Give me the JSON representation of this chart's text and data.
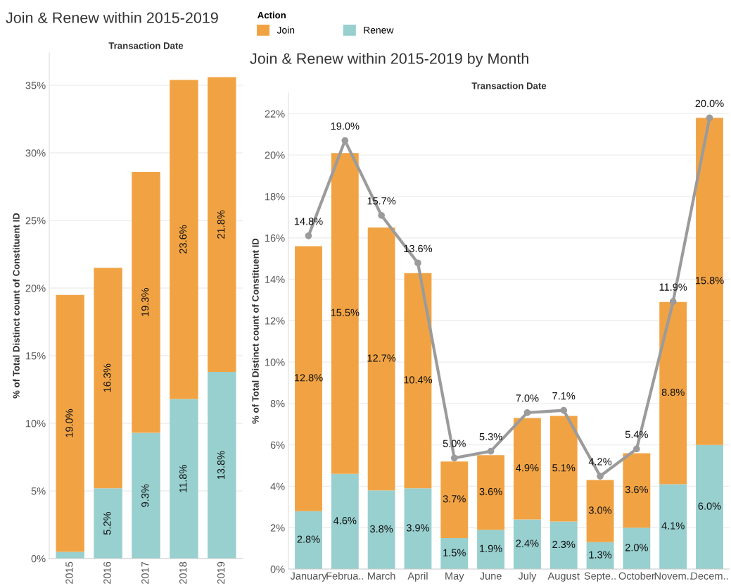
{
  "chart_data": [
    {
      "type": "bar",
      "title": "Join & Renew within 2015-2019",
      "xlabel": "Transaction Date",
      "ylabel": "% of Total Distinct count of Constituent ID",
      "stacked": true,
      "grid": "y",
      "legend": "top right",
      "legend_title": "Action",
      "categories": [
        "2015",
        "2016",
        "2017",
        "2018",
        "2019"
      ],
      "ylim": [
        0,
        37.4
      ],
      "yticks": [
        {
          "value": 0,
          "label": "0%"
        },
        {
          "value": 5,
          "label": "5%"
        },
        {
          "value": 10,
          "label": "10%"
        },
        {
          "value": 15,
          "label": "15%"
        },
        {
          "value": 20,
          "label": "20%"
        },
        {
          "value": 25,
          "label": "25%"
        },
        {
          "value": 30,
          "label": "30%"
        },
        {
          "value": 35,
          "label": "35%"
        }
      ],
      "series": [
        {
          "name": "Renew",
          "color": "#98cfcf",
          "values": [
            0.5,
            5.2,
            9.3,
            11.8,
            13.8
          ],
          "value_labels": [
            null,
            "5.2%",
            "9.3%",
            "11.8%",
            "13.8%"
          ]
        },
        {
          "name": "Join",
          "color": "#f1a344",
          "values": [
            19.0,
            16.3,
            19.3,
            23.6,
            21.8
          ],
          "value_labels": [
            "19.0%",
            "16.3%",
            "19.3%",
            "23.6%",
            "21.8%"
          ]
        }
      ]
    },
    {
      "type": "bar",
      "title": "Join & Renew within 2015-2019 by Month",
      "xlabel": "Transaction Date",
      "ylabel": "% of Total Distinct count of Constituent ID",
      "stacked": true,
      "grid": "y",
      "categories": [
        "January",
        "Februa..",
        "March",
        "April",
        "May",
        "June",
        "July",
        "August",
        "Septe..",
        "October",
        "Novem..",
        "Decem.."
      ],
      "ylim": [
        0,
        23
      ],
      "yticks": [
        {
          "value": 0,
          "label": "0%"
        },
        {
          "value": 2,
          "label": "2%"
        },
        {
          "value": 4,
          "label": "4%"
        },
        {
          "value": 6,
          "label": "6%"
        },
        {
          "value": 8,
          "label": "8%"
        },
        {
          "value": 10,
          "label": "10%"
        },
        {
          "value": 12,
          "label": "12%"
        },
        {
          "value": 14,
          "label": "14%"
        },
        {
          "value": 16,
          "label": "16%"
        },
        {
          "value": 18,
          "label": "18%"
        },
        {
          "value": 20,
          "label": "20%"
        },
        {
          "value": 22,
          "label": "22%"
        }
      ],
      "y2lim": [
        0.1,
        21.1
      ],
      "series": [
        {
          "color": "#98cfcf",
          "values": [
            2.8,
            4.6,
            3.8,
            3.9,
            1.5,
            1.9,
            2.4,
            2.3,
            1.3,
            2.0,
            4.1,
            6.0
          ],
          "value_labels": [
            "2.8%",
            "4.6%",
            "3.8%",
            "3.9%",
            "1.5%",
            "1.9%",
            "2.4%",
            "2.3%",
            "1.3%",
            "2.0%",
            "4.1%",
            "6.0%"
          ]
        },
        {
          "color": "#f1a344",
          "values": [
            12.8,
            15.5,
            12.7,
            10.4,
            3.7,
            3.6,
            4.9,
            5.1,
            3.0,
            3.6,
            8.8,
            15.8
          ],
          "value_labels": [
            "12.8%",
            "15.5%",
            "12.7%",
            "10.4%",
            "3.7%",
            "3.6%",
            "4.9%",
            "5.1%",
            "3.0%",
            "3.6%",
            "8.8%",
            "15.8%"
          ]
        },
        {
          "type": "line",
          "axis": "y2",
          "color": "#9b9b9b",
          "marker": "circle",
          "values": [
            14.8,
            19.0,
            15.7,
            13.6,
            5.0,
            5.3,
            7.0,
            7.1,
            4.2,
            5.4,
            11.9,
            20.0
          ],
          "value_labels": [
            "14.8%",
            "19.0%",
            "15.7%",
            "13.6%",
            "5.0%",
            "5.3%",
            "7.0%",
            "7.1%",
            "4.2%",
            "5.4%",
            "11.9%",
            "20.0%"
          ]
        }
      ]
    }
  ]
}
